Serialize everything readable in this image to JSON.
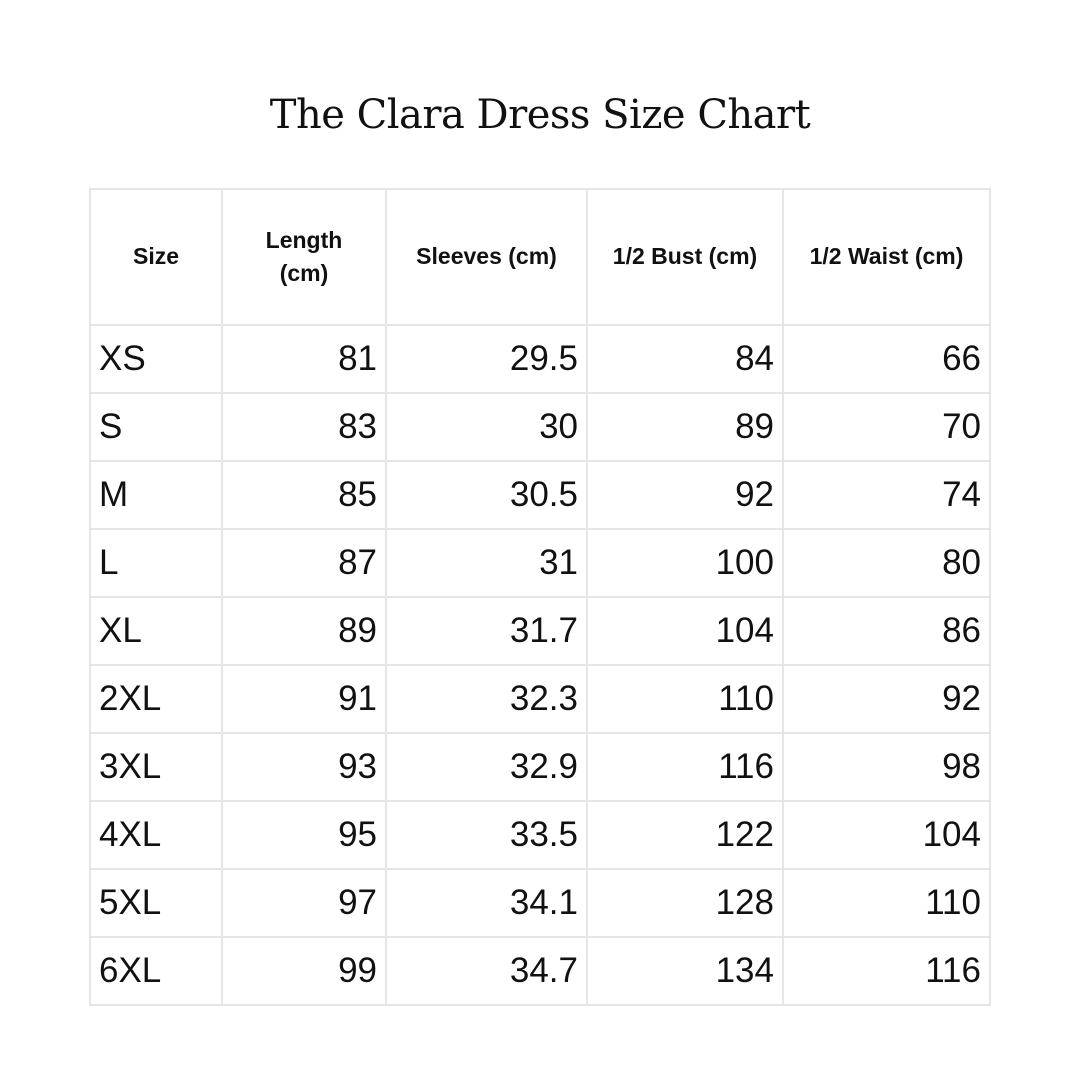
{
  "title": "The Clara Dress Size Chart",
  "table": {
    "headers": [
      "Size",
      "Length (cm)",
      "Sleeves (cm)",
      "1/2 Bust (cm)",
      "1/2 Waist (cm)"
    ],
    "rows": [
      [
        "XS",
        "81",
        "29.5",
        "84",
        "66"
      ],
      [
        "S",
        "83",
        "30",
        "89",
        "70"
      ],
      [
        "M",
        "85",
        "30.5",
        "92",
        "74"
      ],
      [
        "L",
        "87",
        "31",
        "100",
        "80"
      ],
      [
        "XL",
        "89",
        "31.7",
        "104",
        "86"
      ],
      [
        "2XL",
        "91",
        "32.3",
        "110",
        "92"
      ],
      [
        "3XL",
        "93",
        "32.9",
        "116",
        "98"
      ],
      [
        "4XL",
        "95",
        "33.5",
        "122",
        "104"
      ],
      [
        "5XL",
        "97",
        "34.1",
        "128",
        "110"
      ],
      [
        "6XL",
        "99",
        "34.7",
        "134",
        "116"
      ]
    ]
  }
}
